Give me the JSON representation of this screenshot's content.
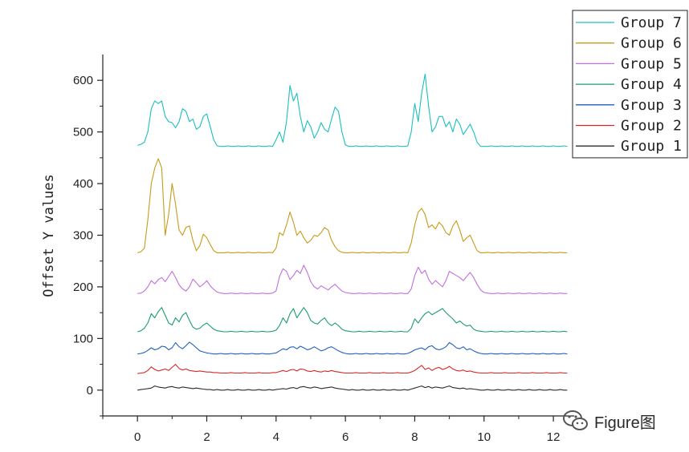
{
  "chart_data": {
    "type": "line",
    "title": "",
    "xlabel": "",
    "ylabel": "Offset Y values",
    "xlim": [
      -1,
      12.6
    ],
    "ylim": [
      -50,
      650
    ],
    "xticks": [
      0,
      2,
      4,
      6,
      8,
      10,
      12
    ],
    "yticks": [
      0,
      100,
      200,
      300,
      400,
      500,
      600
    ],
    "grid": false,
    "legend_position": "top-right",
    "x": [
      0.0,
      0.1,
      0.2,
      0.3,
      0.4,
      0.5,
      0.6,
      0.7,
      0.8,
      0.9,
      1.0,
      1.1,
      1.2,
      1.3,
      1.4,
      1.5,
      1.6,
      1.7,
      1.8,
      1.9,
      2.0,
      2.1,
      2.2,
      2.3,
      2.4,
      2.5,
      2.6,
      2.7,
      2.8,
      2.9,
      3.0,
      3.1,
      3.2,
      3.3,
      3.4,
      3.5,
      3.6,
      3.7,
      3.8,
      3.9,
      4.0,
      4.1,
      4.2,
      4.3,
      4.4,
      4.5,
      4.6,
      4.7,
      4.8,
      4.9,
      5.0,
      5.1,
      5.2,
      5.3,
      5.4,
      5.5,
      5.6,
      5.7,
      5.8,
      5.9,
      6.0,
      6.1,
      6.2,
      6.3,
      6.4,
      6.5,
      6.6,
      6.7,
      6.8,
      6.9,
      7.0,
      7.1,
      7.2,
      7.3,
      7.4,
      7.5,
      7.6,
      7.7,
      7.8,
      7.9,
      8.0,
      8.1,
      8.2,
      8.3,
      8.4,
      8.5,
      8.6,
      8.7,
      8.8,
      8.9,
      9.0,
      9.1,
      9.2,
      9.3,
      9.4,
      9.5,
      9.6,
      9.7,
      9.8,
      9.9,
      10.0,
      10.1,
      10.2,
      10.3,
      10.4,
      10.5,
      10.6,
      10.7,
      10.8,
      10.9,
      11.0,
      11.1,
      11.2,
      11.3,
      11.4,
      11.5,
      11.6,
      11.7,
      11.8,
      11.9,
      12.0,
      12.1,
      12.2,
      12.3,
      12.4
    ],
    "series": [
      {
        "name": "Group 1",
        "color": "#2b2b2b",
        "values": [
          0,
          1,
          2,
          3,
          4,
          8,
          6,
          5,
          4,
          6,
          7,
          5,
          4,
          6,
          5,
          4,
          3,
          4,
          3,
          2,
          1,
          1,
          0,
          1,
          0,
          0,
          1,
          0,
          0,
          1,
          0,
          0,
          1,
          0,
          0,
          1,
          0,
          0,
          1,
          0,
          1,
          2,
          3,
          2,
          4,
          5,
          3,
          6,
          7,
          5,
          4,
          6,
          5,
          3,
          4,
          5,
          6,
          4,
          3,
          2,
          1,
          0,
          1,
          0,
          0,
          1,
          0,
          0,
          1,
          0,
          0,
          1,
          0,
          0,
          1,
          0,
          0,
          1,
          0,
          2,
          4,
          6,
          8,
          5,
          7,
          4,
          6,
          5,
          4,
          6,
          8,
          5,
          4,
          3,
          4,
          2,
          3,
          2,
          1,
          0,
          0,
          1,
          0,
          0,
          1,
          0,
          0,
          1,
          0,
          0,
          1,
          0,
          0,
          1,
          0,
          0,
          1,
          0,
          0,
          1,
          0,
          0,
          1,
          0,
          0
        ]
      },
      {
        "name": "Group 2",
        "color": "#d62728",
        "values": [
          32,
          33,
          34,
          38,
          45,
          40,
          37,
          39,
          41,
          38,
          44,
          50,
          42,
          39,
          41,
          38,
          37,
          36,
          37,
          36,
          35,
          35,
          34,
          34,
          33,
          33,
          33,
          34,
          33,
          33,
          33,
          34,
          33,
          33,
          33,
          34,
          33,
          33,
          33,
          34,
          34,
          36,
          38,
          36,
          39,
          40,
          37,
          41,
          40,
          37,
          36,
          38,
          36,
          35,
          37,
          36,
          38,
          36,
          35,
          34,
          33,
          33,
          33,
          34,
          33,
          33,
          33,
          34,
          33,
          33,
          33,
          34,
          33,
          33,
          33,
          34,
          33,
          33,
          33,
          35,
          38,
          43,
          48,
          40,
          43,
          38,
          42,
          44,
          40,
          42,
          46,
          41,
          38,
          37,
          39,
          36,
          37,
          35,
          34,
          33,
          33,
          33,
          34,
          33,
          33,
          33,
          34,
          33,
          33,
          33,
          34,
          33,
          33,
          33,
          34,
          33,
          33,
          33,
          34,
          33,
          33,
          33,
          34,
          33,
          33
        ]
      },
      {
        "name": "Group 3",
        "color": "#1f5fbf",
        "values": [
          70,
          71,
          73,
          77,
          82,
          78,
          80,
          85,
          84,
          78,
          82,
          92,
          84,
          80,
          86,
          93,
          88,
          82,
          76,
          74,
          72,
          71,
          70,
          70,
          71,
          70,
          70,
          71,
          70,
          70,
          71,
          70,
          70,
          71,
          70,
          70,
          71,
          70,
          70,
          71,
          72,
          76,
          80,
          78,
          83,
          84,
          80,
          85,
          82,
          78,
          80,
          84,
          80,
          76,
          78,
          82,
          84,
          80,
          76,
          73,
          71,
          70,
          70,
          71,
          70,
          70,
          71,
          70,
          70,
          71,
          70,
          70,
          71,
          70,
          70,
          71,
          70,
          70,
          71,
          74,
          78,
          80,
          82,
          78,
          84,
          86,
          80,
          78,
          80,
          84,
          92,
          88,
          82,
          80,
          84,
          78,
          80,
          76,
          73,
          71,
          70,
          70,
          71,
          70,
          70,
          71,
          70,
          70,
          71,
          70,
          70,
          71,
          70,
          70,
          71,
          70,
          70,
          71,
          70,
          70,
          71,
          70,
          70,
          71,
          70
        ]
      },
      {
        "name": "Group 4",
        "color": "#1a9e6a",
        "values": [
          113,
          115,
          120,
          130,
          148,
          140,
          152,
          160,
          145,
          130,
          126,
          140,
          132,
          145,
          150,
          135,
          122,
          118,
          120,
          126,
          130,
          124,
          118,
          115,
          114,
          113,
          113,
          114,
          113,
          113,
          114,
          113,
          113,
          114,
          113,
          113,
          114,
          113,
          113,
          114,
          116,
          125,
          140,
          130,
          148,
          158,
          140,
          150,
          160,
          150,
          135,
          130,
          128,
          135,
          140,
          130,
          125,
          130,
          125,
          118,
          115,
          114,
          113,
          113,
          114,
          113,
          113,
          114,
          113,
          113,
          114,
          113,
          113,
          114,
          113,
          113,
          114,
          113,
          113,
          120,
          138,
          130,
          140,
          148,
          152,
          146,
          150,
          154,
          158,
          150,
          144,
          138,
          130,
          134,
          128,
          124,
          126,
          118,
          115,
          114,
          113,
          113,
          114,
          113,
          113,
          114,
          113,
          113,
          114,
          113,
          113,
          114,
          113,
          113,
          114,
          113,
          113,
          114,
          113,
          113,
          114,
          113,
          113,
          114,
          113
        ]
      },
      {
        "name": "Group 5",
        "color": "#c070e0",
        "values": [
          187,
          188,
          192,
          200,
          212,
          206,
          214,
          218,
          210,
          220,
          230,
          218,
          204,
          196,
          192,
          200,
          215,
          208,
          200,
          205,
          212,
          202,
          195,
          190,
          188,
          187,
          187,
          188,
          187,
          187,
          188,
          187,
          187,
          188,
          187,
          187,
          188,
          187,
          187,
          188,
          192,
          220,
          235,
          230,
          214,
          222,
          232,
          226,
          242,
          228,
          210,
          200,
          196,
          202,
          198,
          194,
          200,
          205,
          198,
          192,
          189,
          188,
          187,
          187,
          188,
          187,
          187,
          188,
          187,
          187,
          188,
          187,
          187,
          188,
          187,
          187,
          188,
          187,
          187,
          196,
          222,
          238,
          226,
          232,
          215,
          205,
          212,
          206,
          200,
          212,
          230,
          226,
          222,
          218,
          212,
          220,
          228,
          218,
          205,
          194,
          189,
          188,
          187,
          187,
          188,
          187,
          187,
          188,
          187,
          187,
          188,
          187,
          187,
          188,
          187,
          187,
          188,
          187,
          187,
          188,
          187,
          187,
          188,
          187,
          187
        ]
      },
      {
        "name": "Group 6",
        "color": "#c89a1a",
        "values": [
          266,
          268,
          275,
          330,
          400,
          430,
          448,
          430,
          300,
          340,
          400,
          360,
          310,
          300,
          315,
          318,
          290,
          270,
          280,
          302,
          295,
          282,
          270,
          266,
          266,
          266,
          267,
          266,
          266,
          267,
          266,
          266,
          267,
          266,
          266,
          267,
          266,
          266,
          267,
          266,
          275,
          305,
          300,
          320,
          345,
          325,
          300,
          308,
          295,
          285,
          290,
          300,
          298,
          305,
          315,
          310,
          290,
          278,
          270,
          267,
          266,
          266,
          267,
          266,
          266,
          267,
          266,
          266,
          267,
          266,
          266,
          267,
          266,
          266,
          267,
          266,
          266,
          267,
          266,
          285,
          320,
          345,
          352,
          340,
          315,
          320,
          312,
          325,
          318,
          305,
          300,
          318,
          328,
          310,
          288,
          295,
          300,
          285,
          270,
          266,
          266,
          267,
          266,
          266,
          267,
          266,
          266,
          267,
          266,
          266,
          267,
          266,
          266,
          267,
          266,
          266,
          267,
          266,
          266,
          267,
          266,
          266,
          267,
          266,
          266
        ]
      },
      {
        "name": "Group 7",
        "color": "#1bbfbf",
        "values": [
          474,
          476,
          480,
          500,
          545,
          560,
          555,
          560,
          530,
          520,
          518,
          508,
          520,
          545,
          540,
          520,
          525,
          505,
          510,
          530,
          535,
          510,
          485,
          473,
          472,
          472,
          473,
          472,
          472,
          473,
          472,
          472,
          473,
          472,
          472,
          473,
          472,
          472,
          473,
          472,
          485,
          500,
          480,
          520,
          590,
          560,
          575,
          530,
          500,
          522,
          510,
          488,
          500,
          518,
          505,
          500,
          525,
          548,
          540,
          500,
          475,
          472,
          472,
          473,
          472,
          472,
          473,
          472,
          472,
          473,
          472,
          472,
          473,
          472,
          472,
          473,
          472,
          472,
          473,
          500,
          555,
          520,
          575,
          612,
          550,
          500,
          510,
          530,
          530,
          510,
          520,
          500,
          525,
          515,
          495,
          505,
          515,
          500,
          480,
          472,
          472,
          472,
          473,
          472,
          472,
          473,
          472,
          472,
          473,
          472,
          472,
          473,
          472,
          472,
          473,
          472,
          472,
          473,
          472,
          472,
          473,
          472,
          472,
          473,
          472
        ]
      }
    ]
  },
  "watermark": {
    "text": "Figure图",
    "icon": "wechat-icon"
  }
}
